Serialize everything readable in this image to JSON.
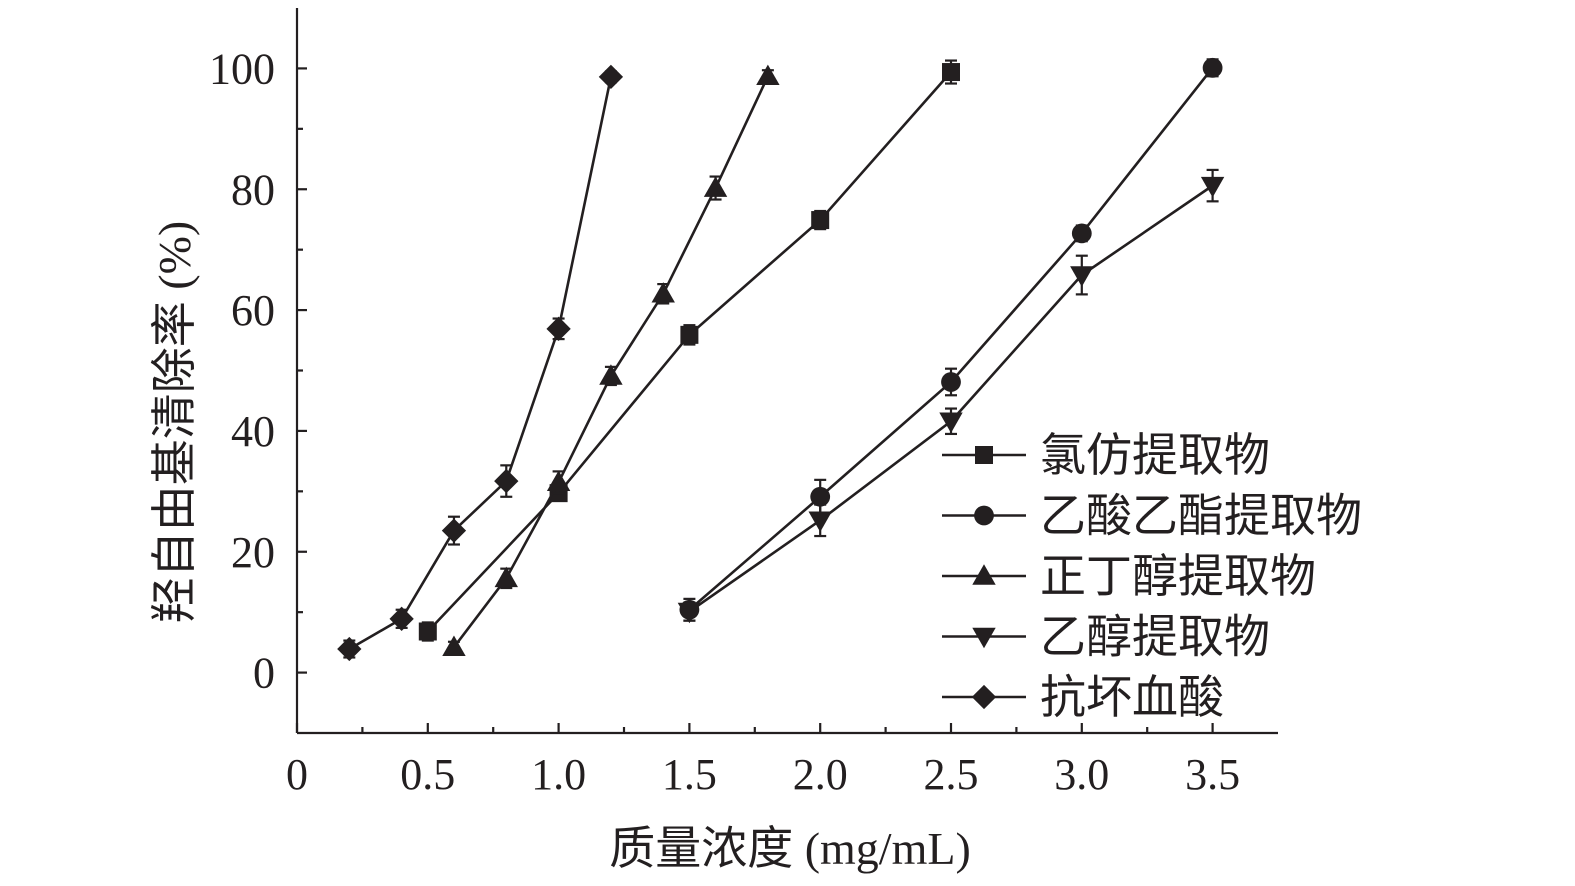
{
  "chart_data": {
    "type": "line",
    "xlabel": "质量浓度 (mg/mL)",
    "ylabel": "羟自由基清除率 (%)",
    "xlim": [
      0,
      3.75
    ],
    "ylim": [
      -10,
      110
    ],
    "xticks": [
      0,
      0.5,
      1.0,
      1.5,
      2.0,
      2.5,
      3.0,
      3.5
    ],
    "xtick_labels": [
      "0",
      "0.5",
      "1.0",
      "1.5",
      "2.0",
      "2.5",
      "3.0",
      "3.5"
    ],
    "yticks": [
      0,
      20,
      40,
      60,
      80,
      100
    ],
    "ytick_labels": [
      "0",
      "20",
      "40",
      "60",
      "80",
      "100"
    ],
    "grid": false,
    "legend_position": "lower-right",
    "color": "#231f20",
    "series": [
      {
        "name": "氯仿提取物",
        "marker": "square",
        "x": [
          0.5,
          1.0,
          1.5,
          2.0,
          2.5
        ],
        "y": [
          6.8,
          29.7,
          55.9,
          74.9,
          99.4
        ],
        "err": [
          1.5,
          1.2,
          1.6,
          1.5,
          1.9
        ]
      },
      {
        "name": "乙酸乙酯提取物",
        "marker": "circle",
        "x": [
          1.5,
          2.0,
          2.5,
          3.0,
          3.5
        ],
        "y": [
          10.4,
          29.1,
          48.1,
          72.7,
          100.1
        ],
        "err": [
          1.8,
          2.8,
          2.2,
          1.3,
          1.4
        ]
      },
      {
        "name": "正丁醇提取物",
        "marker": "triangle-up",
        "x": [
          0.6,
          0.8,
          1.0,
          1.2,
          1.4,
          1.6,
          1.8
        ],
        "y": [
          4.2,
          15.6,
          31.5,
          49.1,
          62.7,
          80.2,
          98.7
        ],
        "err": [
          0.9,
          1.6,
          1.8,
          1.5,
          1.6,
          1.9,
          1.0
        ]
      },
      {
        "name": "乙醇提取物",
        "marker": "triangle-down",
        "x": [
          1.5,
          2.0,
          2.5,
          3.0,
          3.5
        ],
        "y": [
          10.1,
          25.2,
          41.6,
          65.8,
          80.6
        ],
        "err": [
          1.5,
          2.6,
          2.1,
          3.2,
          2.6
        ]
      },
      {
        "name": "抗坏血酸",
        "marker": "diamond",
        "x": [
          0.2,
          0.4,
          0.6,
          0.8,
          1.0,
          1.2
        ],
        "y": [
          3.9,
          8.9,
          23.5,
          31.7,
          56.9,
          98.6
        ],
        "err": [
          1.4,
          1.5,
          2.3,
          2.6,
          1.7,
          0.9
        ]
      }
    ]
  }
}
